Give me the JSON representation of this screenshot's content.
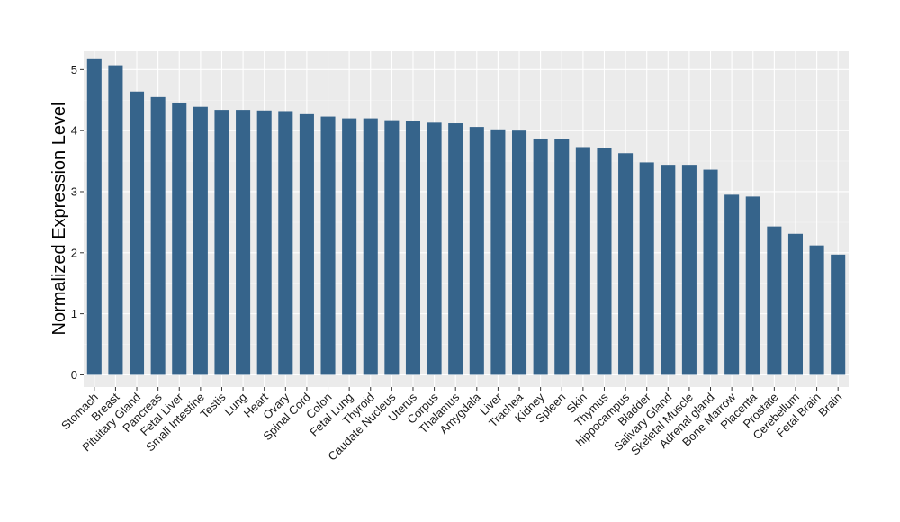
{
  "chart_data": {
    "type": "bar",
    "ylabel": "Normalized Expression Level",
    "ylim": [
      -0.2,
      5.3
    ],
    "yticks": [
      0,
      1,
      2,
      3,
      4,
      5
    ],
    "ytick_labels": [
      "0",
      "1",
      "2",
      "3",
      "4",
      "5"
    ],
    "grid": true,
    "categories": [
      "Stomach",
      "Breast",
      "Pituitary Gland",
      "Pancreas",
      "Fetal Liver",
      "Small Intestine",
      "Testis",
      "Lung",
      "Heart",
      "Ovary",
      "Spinal Cord",
      "Colon",
      "Fetal Lung",
      "Thyroid",
      "Caudate Nucleus",
      "Uterus",
      "Corpus",
      "Thalamus",
      "Amygdala",
      "Liver",
      "Trachea",
      "Kidney",
      "Spleen",
      "Skin",
      "Thymus",
      "hippocampus",
      "Bladder",
      "Salivary Gland",
      "Skeletal Muscle",
      "Adrenal gland",
      "Bone Marrow",
      "Placenta",
      "Prostate",
      "Cerebellum",
      "Fetal Brain",
      "Brain"
    ],
    "values": [
      5.17,
      5.07,
      4.64,
      4.55,
      4.46,
      4.39,
      4.34,
      4.34,
      4.33,
      4.32,
      4.27,
      4.23,
      4.2,
      4.2,
      4.17,
      4.15,
      4.13,
      4.12,
      4.06,
      4.02,
      4.0,
      3.87,
      3.86,
      3.73,
      3.71,
      3.63,
      3.48,
      3.44,
      3.44,
      3.36,
      2.95,
      2.92,
      2.43,
      2.31,
      2.12,
      1.97
    ],
    "colors": {
      "bar": "#36648b",
      "panel": "#ebebeb",
      "grid_major": "#ffffff",
      "grid_minor": "#f5f5f5"
    }
  }
}
